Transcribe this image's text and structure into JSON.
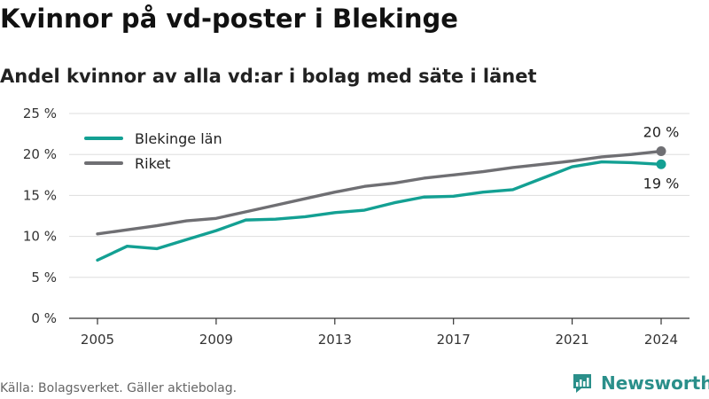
{
  "title": "Kvinnor på vd-poster i Blekinge",
  "subtitle": "Andel kvinnor av alla vd:ar i bolag med säte i länet",
  "source": "Källa: Bolagsverket. Gäller aktiebolag.",
  "brand": "Newsworthy",
  "colors": {
    "blekinge": "#13a093",
    "riket": "#6f6f73",
    "grid": "#dddddd",
    "axis": "#333333",
    "brand": "#2a8f8a"
  },
  "chart_data": {
    "type": "line",
    "title": "Kvinnor på vd-poster i Blekinge",
    "ylabel": "",
    "xlabel": "",
    "x": [
      2005,
      2006,
      2007,
      2008,
      2009,
      2010,
      2011,
      2012,
      2013,
      2014,
      2015,
      2016,
      2017,
      2018,
      2019,
      2020,
      2021,
      2022,
      2023,
      2024
    ],
    "xticks": [
      2005,
      2009,
      2013,
      2017,
      2021,
      2024
    ],
    "yticks": [
      0,
      5,
      10,
      15,
      20,
      25
    ],
    "ytick_labels": [
      "0 %",
      "5 %",
      "10 %",
      "15 %",
      "20 %",
      "25 %"
    ],
    "xlim": [
      2005,
      2024
    ],
    "ylim": [
      0,
      25
    ],
    "grid": true,
    "legend_position": "top-left",
    "series": [
      {
        "name": "Blekinge län",
        "values": [
          7.1,
          8.8,
          8.5,
          9.6,
          10.7,
          12.0,
          12.1,
          12.4,
          12.9,
          13.2,
          14.1,
          14.8,
          14.9,
          15.4,
          15.7,
          17.1,
          18.5,
          19.1,
          19.0,
          18.8
        ],
        "end_label": "19 %"
      },
      {
        "name": "Riket",
        "values": [
          10.3,
          10.8,
          11.3,
          11.9,
          12.2,
          13.0,
          13.8,
          14.6,
          15.4,
          16.1,
          16.5,
          17.1,
          17.5,
          17.9,
          18.4,
          18.8,
          19.2,
          19.7,
          20.0,
          20.4
        ],
        "end_label": "20 %"
      }
    ]
  }
}
